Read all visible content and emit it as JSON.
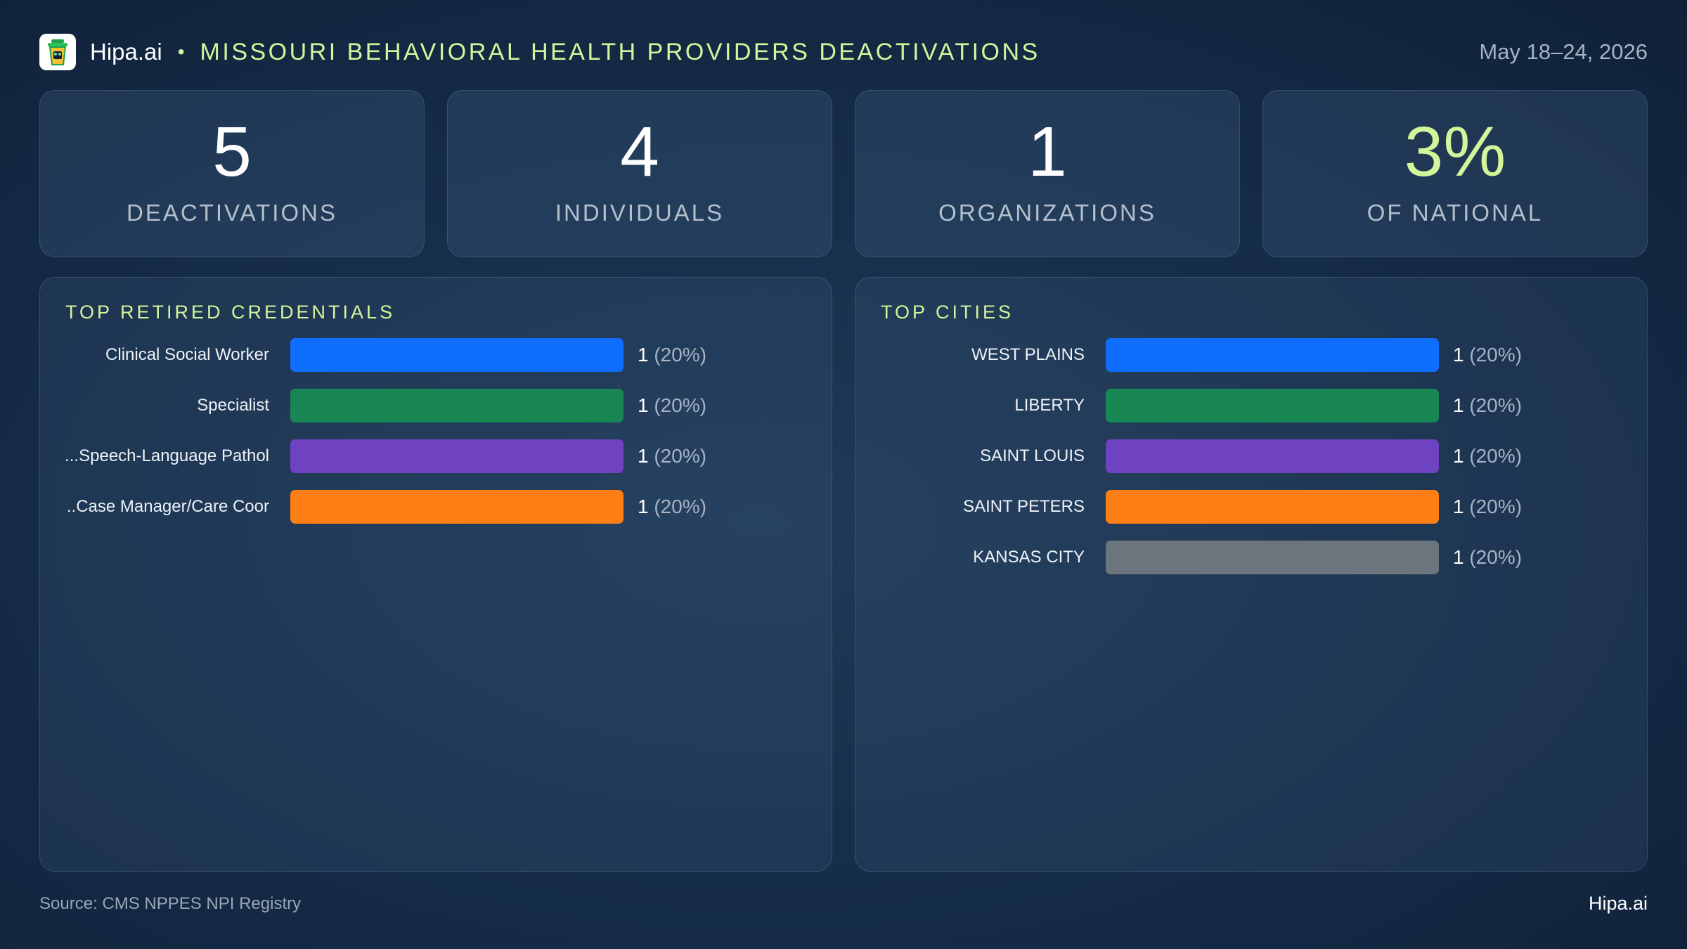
{
  "header": {
    "brand": "Hipa.ai",
    "separator": "•",
    "title": "MISSOURI BEHAVIORAL HEALTH PROVIDERS DEACTIVATIONS",
    "date": "May 18–24, 2026",
    "logo_icon": "trash-can-icon"
  },
  "kpis": [
    {
      "value": "5",
      "label": "DEACTIVATIONS"
    },
    {
      "value": "4",
      "label": "INDIVIDUALS"
    },
    {
      "value": "1",
      "label": "ORGANIZATIONS"
    },
    {
      "value": "3%",
      "label": "OF NATIONAL"
    }
  ],
  "colors": {
    "accent": "#d3f59b",
    "blue": "#0f6efd",
    "green": "#198754",
    "purple": "#6f42c1",
    "orange": "#fd7e14",
    "gray": "#6c757d"
  },
  "chart_data": [
    {
      "type": "bar",
      "title": "TOP RETIRED CREDENTIALS",
      "orientation": "horizontal",
      "categories": [
        "Clinical Social Worker",
        "Specialist",
        "Speech-Language Pathol...",
        "Case Manager/Care Coor..."
      ],
      "values": [
        1,
        1,
        1,
        1
      ],
      "value_labels": [
        "1",
        "1",
        "1",
        "1"
      ],
      "pct_labels": [
        "(20%)",
        "(20%)",
        "(20%)",
        "(20%)"
      ],
      "colors": [
        "#0f6efd",
        "#198754",
        "#6f42c1",
        "#fd7e14"
      ],
      "xlim": [
        0,
        1
      ]
    },
    {
      "type": "bar",
      "title": "TOP CITIES",
      "orientation": "horizontal",
      "categories": [
        "WEST PLAINS",
        "LIBERTY",
        "SAINT LOUIS",
        "SAINT PETERS",
        "KANSAS CITY"
      ],
      "values": [
        1,
        1,
        1,
        1,
        1
      ],
      "value_labels": [
        "1",
        "1",
        "1",
        "1",
        "1"
      ],
      "pct_labels": [
        "(20%)",
        "(20%)",
        "(20%)",
        "(20%)",
        "(20%)"
      ],
      "colors": [
        "#0f6efd",
        "#198754",
        "#6f42c1",
        "#fd7e14",
        "#6c757d"
      ],
      "xlim": [
        0,
        1
      ]
    }
  ],
  "footer": {
    "source": "Source: CMS NPPES NPI Registry",
    "brand": "Hipa.ai"
  }
}
